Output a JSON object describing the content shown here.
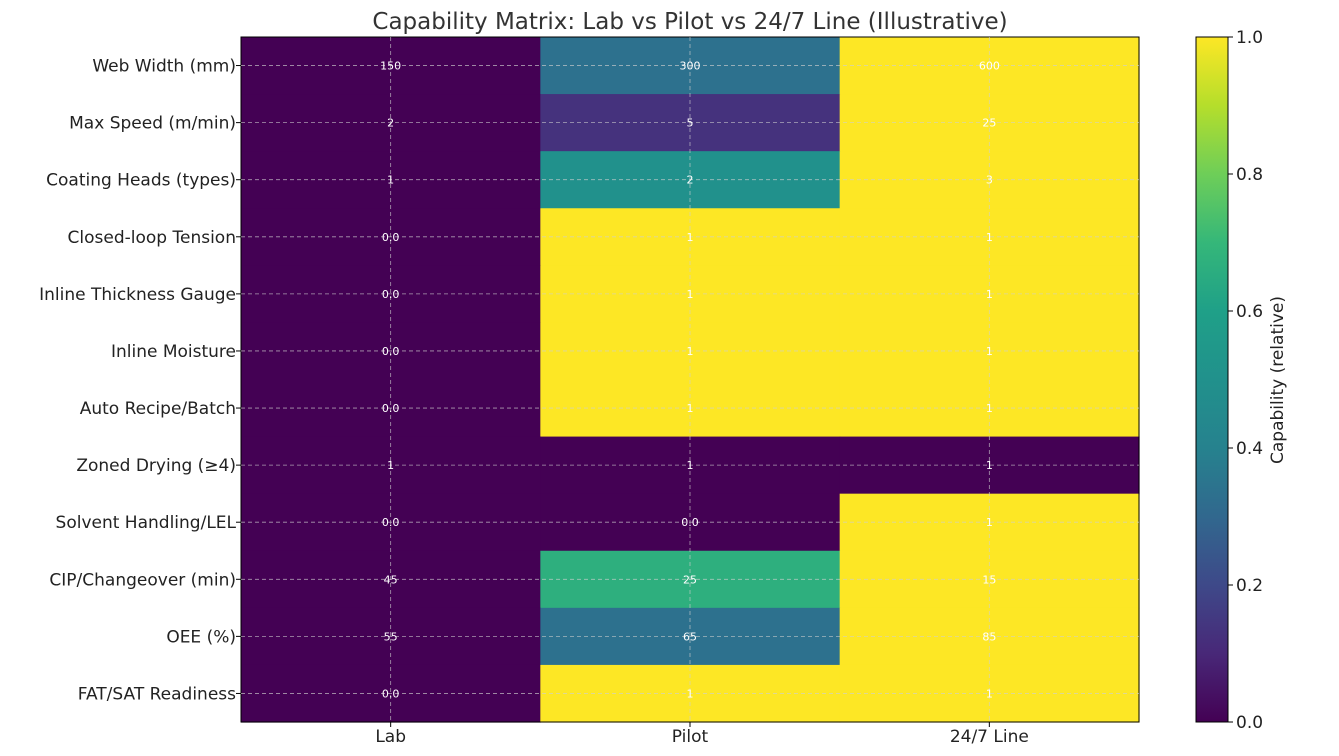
{
  "chart_data": {
    "type": "heatmap",
    "title": "Capability Matrix: Lab vs Pilot vs 24/7 Line (Illustrative)",
    "columns": [
      "Lab",
      "Pilot",
      "24/7 Line"
    ],
    "rows": [
      "Web Width (mm)",
      "Max Speed (m/min)",
      "Coating Heads (types)",
      "Closed-loop Tension",
      "Inline Thickness Gauge",
      "Inline Moisture",
      "Auto Recipe/Batch",
      "Zoned Drying (≥4)",
      "Solvent Handling/LEL",
      "CIP/Changeover (min)",
      "OEE (%)",
      "FAT/SAT Readiness"
    ],
    "cell_labels": [
      [
        "150",
        "300",
        "600"
      ],
      [
        "2",
        "5",
        "25"
      ],
      [
        "1",
        "2",
        "3"
      ],
      [
        "0.0",
        "1",
        "1"
      ],
      [
        "0.0",
        "1",
        "1"
      ],
      [
        "0.0",
        "1",
        "1"
      ],
      [
        "0.0",
        "1",
        "1"
      ],
      [
        "1",
        "1",
        "1"
      ],
      [
        "0.0",
        "0.0",
        "1"
      ],
      [
        "45",
        "25",
        "15"
      ],
      [
        "55",
        "65",
        "85"
      ],
      [
        "0.0",
        "1",
        "1"
      ]
    ],
    "normalized_values": [
      [
        0.0,
        0.333,
        1.0
      ],
      [
        0.0,
        0.13,
        1.0
      ],
      [
        0.0,
        0.5,
        1.0
      ],
      [
        0.0,
        1.0,
        1.0
      ],
      [
        0.0,
        1.0,
        1.0
      ],
      [
        0.0,
        1.0,
        1.0
      ],
      [
        0.0,
        1.0,
        1.0
      ],
      [
        0.0,
        0.0,
        0.0
      ],
      [
        0.0,
        0.0,
        1.0
      ],
      [
        0.0,
        0.667,
        1.0
      ],
      [
        0.0,
        0.333,
        1.0
      ],
      [
        0.0,
        1.0,
        1.0
      ]
    ],
    "colormap": "viridis",
    "colorbar": {
      "label": "Capability (relative)",
      "range": [
        0.0,
        1.0
      ],
      "ticks": [
        "0.0",
        "0.2",
        "0.4",
        "0.6",
        "0.8",
        "1.0"
      ]
    },
    "grid": true,
    "cell_label_color": "#ffffff"
  }
}
